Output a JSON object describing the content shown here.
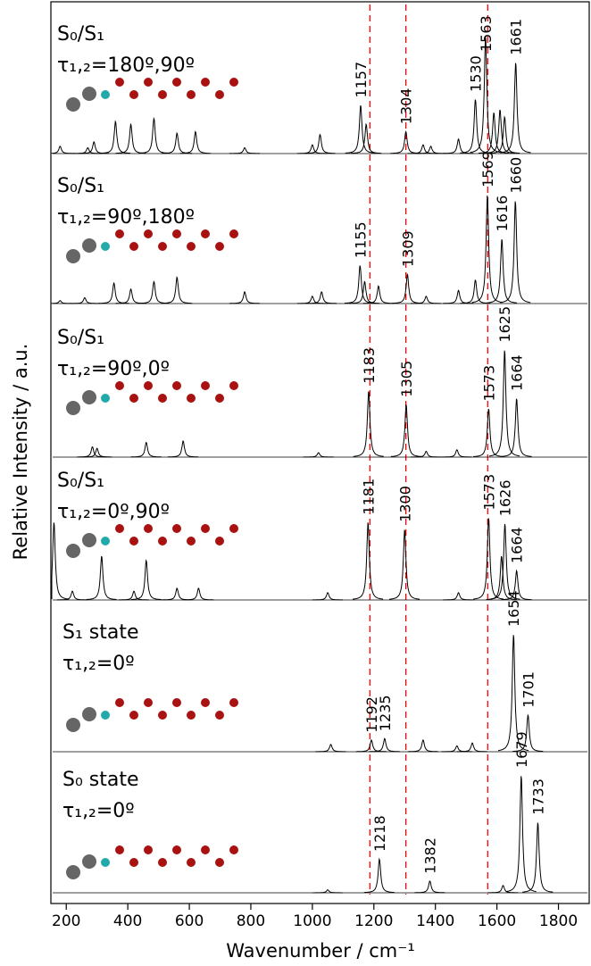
{
  "chart_data": {
    "type": "line",
    "x_label": "Wavenumber / cm⁻¹",
    "y_label": "Relative Intensity / a.u.",
    "xlim": [
      150,
      1900
    ],
    "xticks": [
      200,
      400,
      600,
      800,
      1000,
      1200,
      1400,
      1600,
      1800
    ],
    "ylim": [
      0,
      100
    ],
    "line_color": "#000000",
    "reference_lines": {
      "values": [
        1187,
        1304,
        1570
      ],
      "color": "#ff0000"
    },
    "series": [
      {
        "label": [
          "S₀/S₁",
          "τ₁,₂=180º,90º"
        ],
        "peaks": {
          "x": [
            180,
            270,
            290,
            360,
            410,
            485,
            560,
            620,
            780,
            1000,
            1025,
            1157,
            1175,
            1304,
            1360,
            1385,
            1475,
            1530,
            1563,
            1590,
            1610,
            1625,
            1661
          ],
          "values": [
            5,
            4,
            8,
            22,
            20,
            24,
            14,
            15,
            4,
            6,
            13,
            33,
            20,
            15,
            6,
            5,
            10,
            37,
            80,
            28,
            30,
            25,
            62
          ]
        },
        "peak_labels": [
          1157,
          1304,
          1530,
          1563,
          1661
        ]
      },
      {
        "label": [
          "S₀/S₁",
          "τ₁,₂=90º,180º"
        ],
        "peaks": {
          "x": [
            180,
            260,
            355,
            410,
            485,
            560,
            780,
            1000,
            1030,
            1155,
            1170,
            1215,
            1309,
            1370,
            1475,
            1530,
            1569,
            1616,
            1660
          ],
          "values": [
            2,
            4,
            14,
            10,
            15,
            18,
            8,
            5,
            8,
            26,
            15,
            12,
            20,
            5,
            9,
            16,
            74,
            44,
            70
          ]
        },
        "peak_labels": [
          1155,
          1309,
          1569,
          1616,
          1660
        ]
      },
      {
        "label": [
          "S₀/S₁",
          "τ₁,₂=90º,0º"
        ],
        "peaks": {
          "x": [
            285,
            300,
            460,
            580,
            1020,
            1183,
            1305,
            1370,
            1470,
            1573,
            1625,
            1664
          ],
          "values": [
            7,
            6,
            10,
            11,
            3,
            45,
            36,
            4,
            5,
            33,
            73,
            40
          ]
        },
        "peak_labels": [
          1183,
          1305,
          1573,
          1625,
          1664
        ]
      },
      {
        "label": [
          "S₀/S₁",
          "τ₁,₂=0º,90º"
        ],
        "peaks": {
          "x": [
            160,
            220,
            315,
            420,
            460,
            560,
            630,
            1050,
            1181,
            1300,
            1475,
            1573,
            1615,
            1626,
            1664
          ],
          "values": [
            53,
            6,
            30,
            6,
            27,
            8,
            8,
            5,
            53,
            48,
            5,
            56,
            30,
            52,
            20
          ]
        },
        "peak_labels": [
          1181,
          1300,
          1573,
          1626,
          1664
        ]
      },
      {
        "label": [
          "S₁ state",
          "τ₁,₂=0º"
        ],
        "peaks": {
          "x": [
            1060,
            1192,
            1235,
            1360,
            1470,
            1520,
            1654,
            1701
          ],
          "values": [
            5,
            8,
            9,
            8,
            4,
            6,
            80,
            25
          ]
        },
        "peak_labels": [
          1192,
          1235,
          1654,
          1701
        ]
      },
      {
        "label": [
          "S₀ state",
          "τ₁,₂=0º"
        ],
        "peaks": {
          "x": [
            1050,
            1218,
            1382,
            1620,
            1679,
            1733
          ],
          "values": [
            2,
            23,
            8,
            5,
            80,
            48
          ]
        },
        "peak_labels": [
          1218,
          1382,
          1679,
          1733
        ]
      }
    ]
  }
}
